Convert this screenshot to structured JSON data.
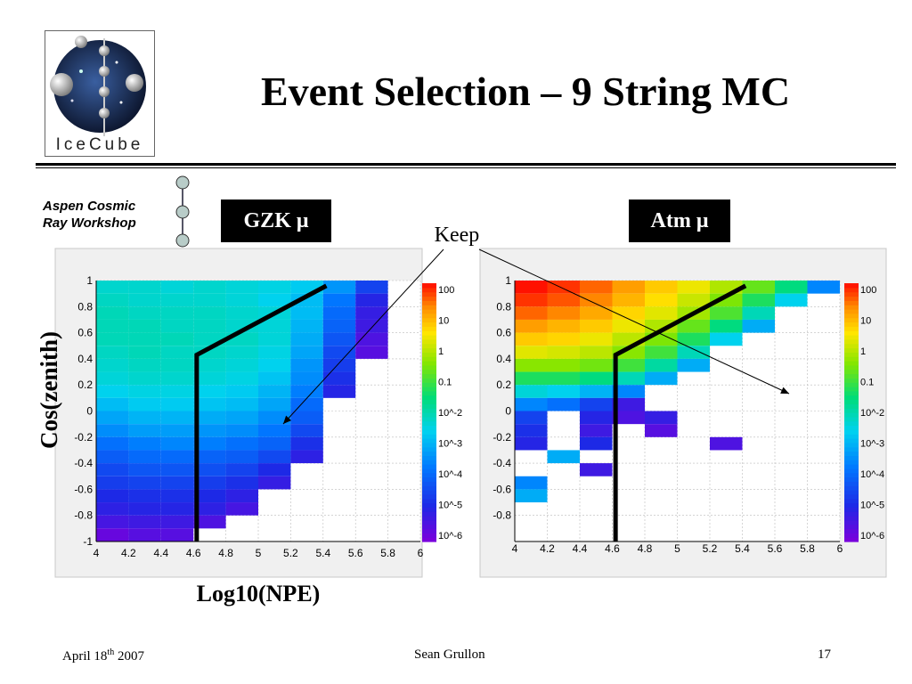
{
  "slide": {
    "title": "Event Selection – 9 String MC",
    "logo_text": "IceCube",
    "workshop": [
      "Aspen Cosmic",
      "Ray Workshop"
    ],
    "tags": {
      "left": "GZK μ",
      "right": "Atm μ"
    },
    "keep_label": "Keep",
    "ylabel": "Cos(zenith)",
    "xlabel": "Log10(NPE)",
    "footer": {
      "date_prefix": "April 18",
      "date_sup": "th",
      "date_suffix": " 2007",
      "author": "Sean Grullon",
      "page": "17"
    }
  },
  "chart_data": [
    {
      "type": "heatmap",
      "name": "GZK μ",
      "x_range": [
        4,
        6
      ],
      "y_range": [
        -1,
        1
      ],
      "x_ticks": [
        "4",
        "4.2",
        "4.4",
        "4.6",
        "4.8",
        "5",
        "5.2",
        "5.4",
        "5.6",
        "5.8",
        "6"
      ],
      "y_ticks": [
        "-1",
        "-0.8",
        "-0.6",
        "-0.4",
        "-0.2",
        "0",
        "0.2",
        "0.4",
        "0.6",
        "0.8",
        "1"
      ],
      "colorbar_ticks": [
        "100",
        "10",
        "1",
        "0.1",
        "10^-2",
        "10^-3",
        "10^-4",
        "10^-5",
        "10^-6"
      ],
      "color_scale": "log",
      "x_bin_edges": [
        4,
        4.2,
        4.4,
        4.6,
        4.8,
        5,
        5.2,
        5.4,
        5.6,
        5.8,
        6
      ],
      "y_bin_edges": [
        -1,
        -0.9,
        -0.8,
        -0.7,
        -0.6,
        -0.5,
        -0.4,
        -0.3,
        -0.2,
        -0.1,
        0,
        0.1,
        0.2,
        0.3,
        0.4,
        0.5,
        0.6,
        0.7,
        0.8,
        0.9,
        1
      ],
      "log10_z_rows_top_to_bottom": [
        [
          -2.2,
          -2.2,
          -2.3,
          -2.2,
          -2.3,
          -2.4,
          -2.6,
          -3.3,
          -4.5,
          null
        ],
        [
          -2.1,
          -2.2,
          -2.2,
          -2.2,
          -2.3,
          -2.5,
          -2.8,
          -3.7,
          -5.0,
          null
        ],
        [
          -2.0,
          -2.1,
          -2.1,
          -2.1,
          -2.2,
          -2.3,
          -2.8,
          -3.9,
          -5.2,
          null
        ],
        [
          -2.0,
          -2.0,
          -2.1,
          -2.1,
          -2.2,
          -2.3,
          -2.9,
          -4.0,
          -5.3,
          null
        ],
        [
          -2.0,
          -2.0,
          -2.0,
          -2.1,
          -2.1,
          -2.3,
          -3.0,
          -4.2,
          -5.5,
          null
        ],
        [
          -2.1,
          -2.0,
          -2.1,
          -2.1,
          -2.2,
          -2.4,
          -3.1,
          -4.4,
          -5.6,
          null
        ],
        [
          -2.2,
          -2.1,
          -2.1,
          -2.2,
          -2.3,
          -2.5,
          -3.3,
          -4.6,
          null,
          null
        ],
        [
          -2.3,
          -2.2,
          -2.2,
          -2.3,
          -2.4,
          -2.7,
          -3.4,
          -4.8,
          null,
          null
        ],
        [
          -2.5,
          -2.4,
          -2.4,
          -2.5,
          -2.6,
          -2.9,
          -3.6,
          -5.0,
          null,
          null
        ],
        [
          -2.8,
          -2.6,
          -2.6,
          -2.7,
          -2.8,
          -3.1,
          -3.9,
          null,
          null,
          null
        ],
        [
          -3.1,
          -2.9,
          -2.9,
          -3.0,
          -3.1,
          -3.4,
          -4.1,
          null,
          null,
          null
        ],
        [
          -3.4,
          -3.2,
          -3.2,
          -3.3,
          -3.4,
          -3.7,
          -4.4,
          null,
          null,
          null
        ],
        [
          -3.8,
          -3.6,
          -3.5,
          -3.6,
          -3.8,
          -4.0,
          -4.8,
          null,
          null,
          null
        ],
        [
          -4.1,
          -3.9,
          -3.9,
          -4.0,
          -4.1,
          -4.4,
          -5.1,
          null,
          null,
          null
        ],
        [
          -4.4,
          -4.2,
          -4.2,
          -4.3,
          -4.5,
          -4.9,
          null,
          null,
          null,
          null
        ],
        [
          -4.6,
          -4.5,
          -4.5,
          -4.6,
          -4.8,
          -5.2,
          null,
          null,
          null,
          null
        ],
        [
          -4.9,
          -4.8,
          -4.8,
          -4.9,
          -5.1,
          null,
          null,
          null,
          null,
          null
        ],
        [
          -5.1,
          -5.0,
          -5.0,
          -5.1,
          -5.4,
          null,
          null,
          null,
          null,
          null
        ],
        [
          -5.4,
          -5.3,
          -5.3,
          -5.5,
          null,
          null,
          null,
          null,
          null,
          null
        ],
        [
          -5.8,
          -5.6,
          -5.6,
          null,
          null,
          null,
          null,
          null,
          null,
          null
        ]
      ],
      "cut_line": [
        [
          4.62,
          -1.0
        ],
        [
          4.62,
          0.43
        ],
        [
          5.42,
          0.96
        ]
      ]
    },
    {
      "type": "heatmap",
      "name": "Atm μ",
      "x_range": [
        4,
        6
      ],
      "y_range": [
        -1,
        1
      ],
      "x_ticks": [
        "4",
        "4.2",
        "4.4",
        "4.6",
        "4.8",
        "5",
        "5.2",
        "5.4",
        "5.6",
        "5.8",
        "6"
      ],
      "y_ticks": [
        "1",
        "0.8",
        "0.6",
        "0.4",
        "0.2",
        "0",
        "-0.2",
        "-0.4",
        "-0.6",
        "-0.8"
      ],
      "colorbar_ticks": [
        "100",
        "10",
        "1",
        "0.1",
        "10^-2",
        "10^-3",
        "10^-4",
        "10^-5",
        "10^-6"
      ],
      "color_scale": "log",
      "x_bin_edges": [
        4,
        4.2,
        4.4,
        4.6,
        4.8,
        5,
        5.2,
        5.4,
        5.6,
        5.8,
        6
      ],
      "y_bin_edges": [
        -1,
        -0.9,
        -0.8,
        -0.7,
        -0.6,
        -0.5,
        -0.4,
        -0.3,
        -0.2,
        -0.1,
        0,
        0.1,
        0.2,
        0.3,
        0.4,
        0.5,
        0.6,
        0.7,
        0.8,
        0.9,
        1
      ],
      "log10_z_rows_top_to_bottom": [
        [
          2.2,
          2.0,
          1.7,
          1.3,
          0.9,
          0.5,
          0.0,
          -0.6,
          -1.5,
          -3.5
        ],
        [
          2.0,
          1.8,
          1.5,
          1.1,
          0.7,
          0.2,
          -0.4,
          -1.2,
          -2.5,
          null
        ],
        [
          1.7,
          1.5,
          1.2,
          0.8,
          0.4,
          -0.1,
          -0.8,
          -2.0,
          null,
          null
        ],
        [
          1.3,
          1.1,
          0.9,
          0.5,
          0.0,
          -0.6,
          -1.5,
          -3.0,
          null,
          null
        ],
        [
          0.9,
          0.8,
          0.5,
          0.1,
          -0.4,
          -1.2,
          -2.5,
          null,
          null,
          null
        ],
        [
          0.4,
          0.3,
          0.1,
          -0.3,
          -0.9,
          -2.0,
          null,
          null,
          null,
          null
        ],
        [
          -0.3,
          -0.3,
          -0.5,
          -0.9,
          -1.8,
          -3.0,
          null,
          null,
          null,
          null
        ],
        [
          -1.2,
          -1.2,
          -1.5,
          -2.0,
          -3.0,
          null,
          null,
          null,
          null,
          null
        ],
        [
          -2.3,
          -2.5,
          -2.9,
          -3.5,
          null,
          null,
          null,
          null,
          null,
          null
        ],
        [
          -3.5,
          -3.8,
          -4.5,
          -5.3,
          null,
          null,
          null,
          null,
          null,
          null
        ],
        [
          -4.5,
          null,
          -5.0,
          -5.5,
          -5.2,
          null,
          null,
          null,
          null,
          null
        ],
        [
          -4.8,
          null,
          -5.3,
          null,
          -5.6,
          null,
          null,
          null,
          null,
          null
        ],
        [
          -5.0,
          null,
          -4.9,
          null,
          null,
          null,
          -5.5,
          null,
          null,
          null
        ],
        [
          null,
          -3.0,
          null,
          null,
          null,
          null,
          null,
          null,
          null,
          null
        ],
        [
          null,
          null,
          -5.3,
          null,
          null,
          null,
          null,
          null,
          null,
          null
        ],
        [
          -3.5,
          null,
          null,
          null,
          null,
          null,
          null,
          null,
          null,
          null
        ],
        [
          -3.0,
          null,
          null,
          null,
          null,
          null,
          null,
          null,
          null,
          null
        ],
        [
          null,
          null,
          null,
          null,
          null,
          null,
          null,
          null,
          null,
          null
        ],
        [
          null,
          null,
          null,
          null,
          null,
          null,
          null,
          null,
          null,
          null
        ],
        [
          null,
          null,
          null,
          null,
          null,
          null,
          null,
          null,
          null,
          null
        ]
      ],
      "cut_line": [
        [
          4.62,
          -1.0
        ],
        [
          4.62,
          0.43
        ],
        [
          5.42,
          0.96
        ]
      ]
    }
  ]
}
